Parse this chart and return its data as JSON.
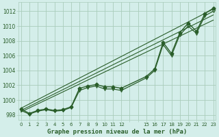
{
  "title": "Graphe pression niveau de la mer (hPa)",
  "bg_color": "#d4eeea",
  "grid_color": "#aaccbb",
  "line_color": "#2a5e2a",
  "hours_main": [
    0,
    1,
    2,
    3,
    4,
    5,
    6,
    7,
    8,
    9,
    10,
    11,
    12,
    15,
    16,
    17,
    18,
    19,
    20,
    21,
    22,
    23
  ],
  "pressure_main": [
    998.8,
    998.2,
    998.6,
    998.8,
    998.6,
    998.7,
    999.1,
    1001.6,
    1001.9,
    1002.1,
    1001.8,
    1001.8,
    1001.6,
    1003.2,
    1004.2,
    1007.8,
    1006.3,
    1009.1,
    1010.4,
    1009.3,
    1011.7,
    1012.4
  ],
  "hours_tri": [
    0,
    1,
    2,
    3,
    4,
    5,
    6,
    7,
    8,
    9,
    10,
    11,
    12,
    15,
    16,
    17,
    18,
    19,
    20,
    21,
    22,
    23
  ],
  "pressure_tri": [
    998.6,
    998.1,
    998.5,
    998.7,
    998.5,
    998.6,
    999.0,
    1001.3,
    1001.7,
    1001.9,
    1001.5,
    1001.5,
    1001.3,
    1003.0,
    1004.0,
    1007.5,
    1006.0,
    1008.8,
    1010.0,
    1009.0,
    1011.4,
    1012.0
  ],
  "trend_lines": [
    {
      "x": [
        0,
        23
      ],
      "y": [
        998.4,
        1010.8
      ]
    },
    {
      "x": [
        0,
        23
      ],
      "y": [
        998.6,
        1011.5
      ]
    },
    {
      "x": [
        0,
        23
      ],
      "y": [
        998.9,
        1012.3
      ]
    }
  ],
  "ylim": [
    997.3,
    1013.2
  ],
  "yticks": [
    998,
    1000,
    1002,
    1004,
    1006,
    1008,
    1010,
    1012
  ],
  "xlim": [
    -0.3,
    23.3
  ],
  "xtick_positions": [
    0,
    1,
    2,
    3,
    4,
    5,
    6,
    7,
    8,
    9,
    10,
    11,
    12,
    13,
    14,
    15,
    16,
    17,
    18,
    19,
    20,
    21,
    22,
    23
  ],
  "xtick_labels": [
    "0",
    "1",
    "2",
    "3",
    "4",
    "5",
    "6",
    "7",
    "8",
    "9",
    "10",
    "11",
    "12",
    "",
    "",
    "15",
    "16",
    "17",
    "18",
    "19",
    "20",
    "21",
    "22",
    "23"
  ]
}
